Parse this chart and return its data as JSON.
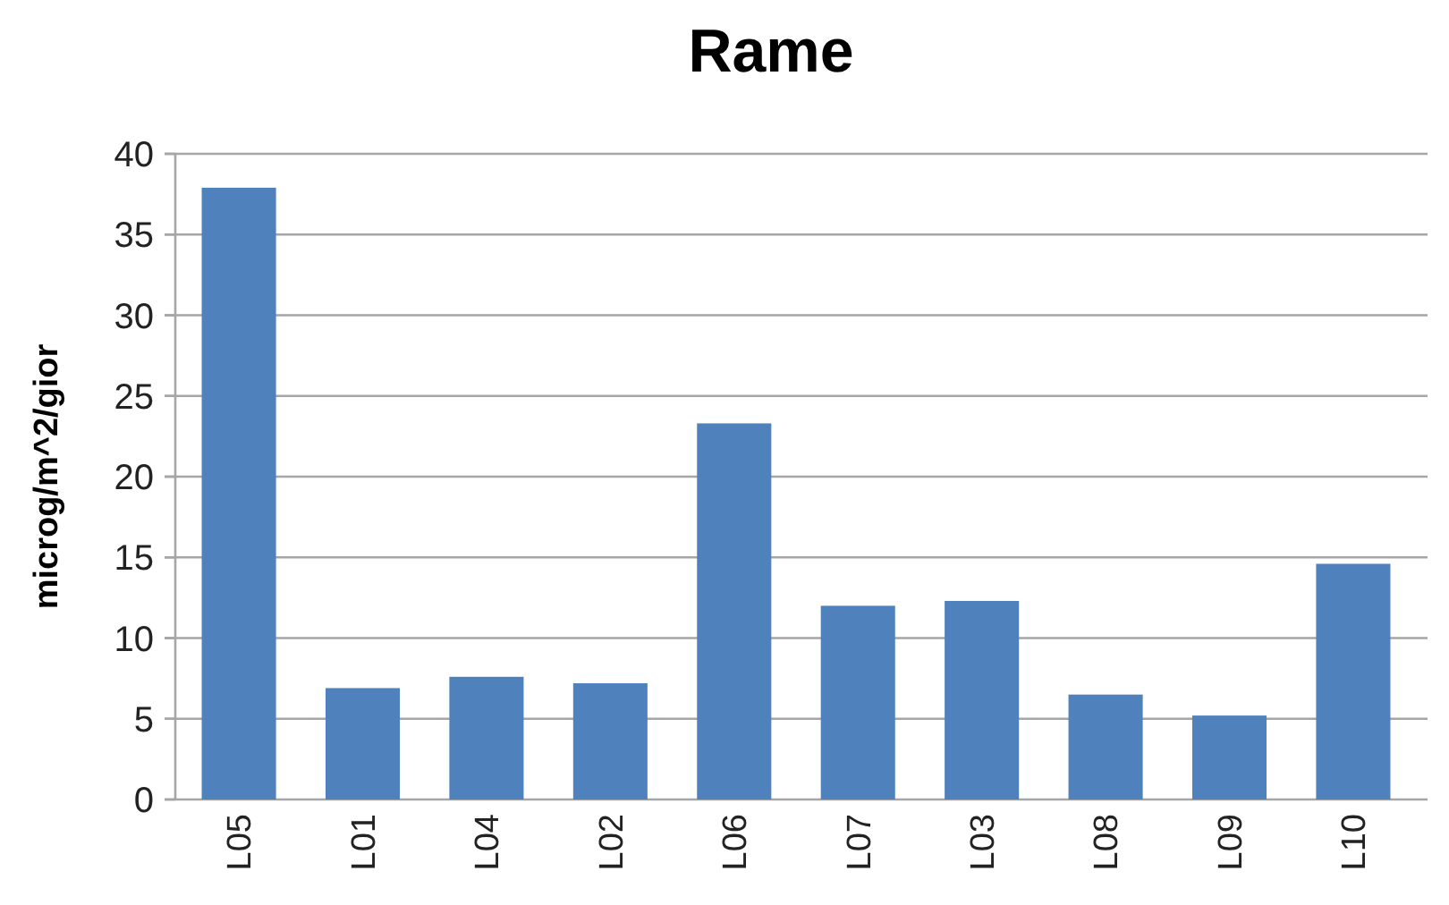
{
  "chart_data": {
    "type": "bar",
    "title": "Rame",
    "ylabel": "microg/m^2/gior",
    "categories": [
      "L05",
      "L01",
      "L04",
      "L02",
      "L06",
      "L07",
      "L03",
      "L08",
      "L09",
      "L10"
    ],
    "values": [
      37.9,
      6.9,
      7.6,
      7.2,
      23.3,
      12.0,
      12.3,
      6.5,
      5.2,
      14.6
    ],
    "color": "#4f81bd",
    "ylim": [
      0,
      40
    ],
    "yticks": [
      0,
      5,
      10,
      15,
      20,
      25,
      30,
      35,
      40
    ],
    "grid": "y"
  }
}
